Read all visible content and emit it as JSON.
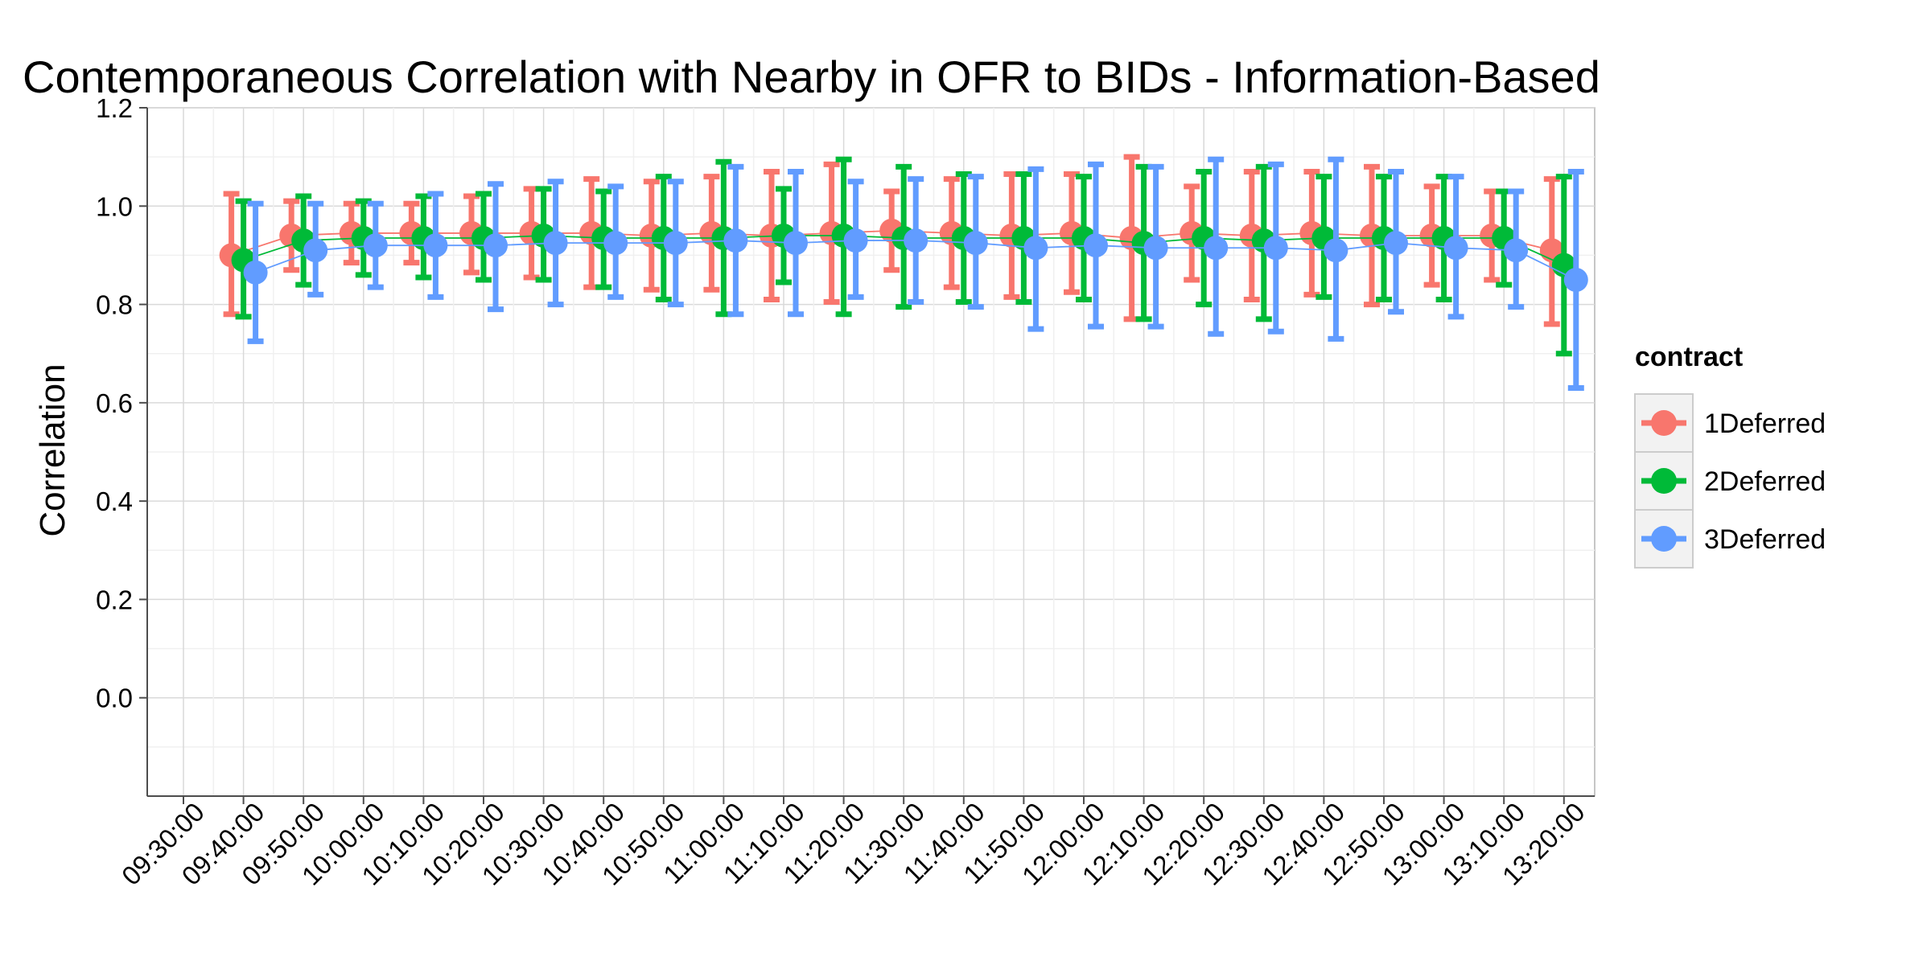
{
  "chart_data": {
    "type": "line",
    "title": "Contemporaneous Correlation with Nearby in OFR to BIDs - Information-Based",
    "xlabel": "",
    "ylabel": "Correlation",
    "ylim": [
      -0.2,
      1.2
    ],
    "y_ticks": [
      0.0,
      0.2,
      0.4,
      0.6,
      0.8,
      1.0,
      1.2
    ],
    "y_tick_labels": [
      "0.0",
      "0.2",
      "0.4",
      "0.6",
      "0.8",
      "1.0",
      "1.2"
    ],
    "x_tick_labels": [
      "09:30:00",
      "09:40:00",
      "09:50:00",
      "10:00:00",
      "10:10:00",
      "10:20:00",
      "10:30:00",
      "10:40:00",
      "10:50:00",
      "11:00:00",
      "11:10:00",
      "11:20:00",
      "11:30:00",
      "11:40:00",
      "11:50:00",
      "12:00:00",
      "12:10:00",
      "12:20:00",
      "12:30:00",
      "12:40:00",
      "12:50:00",
      "13:00:00",
      "13:10:00",
      "13:20:00"
    ],
    "grid": true,
    "legend": {
      "title": "contract",
      "position": "right"
    },
    "series": [
      {
        "name": "1Deferred",
        "color": "#F8766D",
        "y": [
          0.9,
          0.94,
          0.945,
          0.945,
          0.945,
          0.945,
          0.945,
          0.94,
          0.945,
          0.94,
          0.945,
          0.95,
          0.945,
          0.94,
          0.945,
          0.935,
          0.945,
          0.94,
          0.945,
          0.94,
          0.94,
          0.94,
          0.91
        ],
        "upper": [
          1.025,
          1.01,
          1.005,
          1.005,
          1.02,
          1.035,
          1.055,
          1.05,
          1.06,
          1.07,
          1.085,
          1.03,
          1.055,
          1.065,
          1.065,
          1.1,
          1.04,
          1.07,
          1.07,
          1.08,
          1.04,
          1.03,
          1.055
        ],
        "lower": [
          0.78,
          0.87,
          0.885,
          0.885,
          0.865,
          0.855,
          0.835,
          0.83,
          0.83,
          0.81,
          0.805,
          0.87,
          0.835,
          0.815,
          0.825,
          0.77,
          0.85,
          0.81,
          0.82,
          0.8,
          0.84,
          0.85,
          0.76
        ]
      },
      {
        "name": "2Deferred",
        "color": "#00BA38",
        "y": [
          0.89,
          0.93,
          0.935,
          0.935,
          0.935,
          0.94,
          0.935,
          0.935,
          0.935,
          0.94,
          0.94,
          0.935,
          0.935,
          0.935,
          0.935,
          0.925,
          0.935,
          0.93,
          0.935,
          0.935,
          0.935,
          0.935,
          0.88
        ],
        "upper": [
          1.01,
          1.02,
          1.01,
          1.02,
          1.025,
          1.035,
          1.03,
          1.06,
          1.09,
          1.035,
          1.095,
          1.08,
          1.065,
          1.065,
          1.06,
          1.08,
          1.07,
          1.08,
          1.06,
          1.06,
          1.06,
          1.03,
          1.06
        ],
        "lower": [
          0.775,
          0.84,
          0.86,
          0.855,
          0.85,
          0.85,
          0.835,
          0.81,
          0.78,
          0.845,
          0.78,
          0.795,
          0.805,
          0.805,
          0.81,
          0.77,
          0.8,
          0.77,
          0.815,
          0.81,
          0.81,
          0.84,
          0.7
        ]
      },
      {
        "name": "3Deferred",
        "color": "#619CFF",
        "y": [
          0.865,
          0.91,
          0.92,
          0.92,
          0.92,
          0.925,
          0.925,
          0.925,
          0.93,
          0.925,
          0.93,
          0.93,
          0.925,
          0.915,
          0.92,
          0.915,
          0.915,
          0.915,
          0.91,
          0.925,
          0.915,
          0.91,
          0.85
        ],
        "upper": [
          1.005,
          1.005,
          1.005,
          1.025,
          1.045,
          1.05,
          1.04,
          1.05,
          1.08,
          1.07,
          1.05,
          1.055,
          1.06,
          1.075,
          1.085,
          1.08,
          1.095,
          1.085,
          1.095,
          1.07,
          1.06,
          1.03,
          1.07
        ],
        "lower": [
          0.725,
          0.82,
          0.835,
          0.815,
          0.79,
          0.8,
          0.815,
          0.8,
          0.78,
          0.78,
          0.815,
          0.805,
          0.795,
          0.75,
          0.755,
          0.755,
          0.74,
          0.745,
          0.73,
          0.785,
          0.775,
          0.795,
          0.63
        ]
      }
    ]
  }
}
